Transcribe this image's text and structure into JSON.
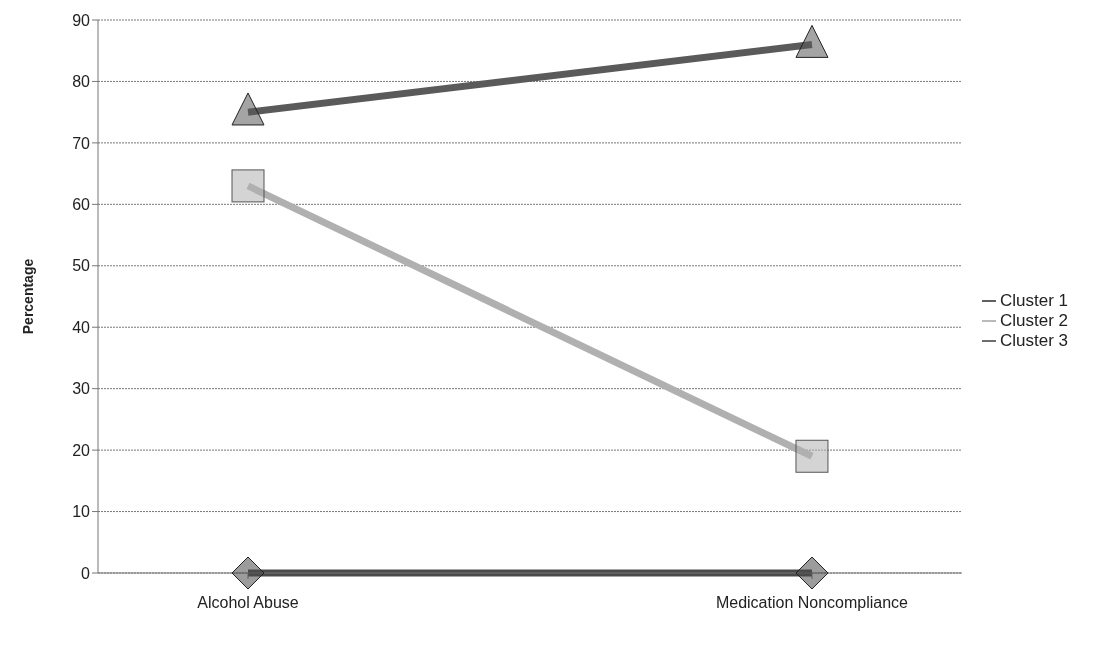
{
  "chart_data": {
    "type": "line",
    "ylabel": "Percentage",
    "categories": [
      "Alcohol Abuse",
      "Medication Noncompliance"
    ],
    "series": [
      {
        "name": "Cluster 1",
        "color": "#4a4a4a",
        "values": [
          0,
          0
        ],
        "marker": "diamond"
      },
      {
        "name": "Cluster 2",
        "color": "#b0b0b0",
        "values": [
          63,
          19
        ],
        "marker": "square"
      },
      {
        "name": "Cluster 3",
        "color": "#5a5a5a",
        "values": [
          75,
          86
        ],
        "marker": "triangle"
      }
    ],
    "ylim": [
      0,
      90
    ],
    "yticks": [
      0,
      10,
      20,
      30,
      40,
      50,
      60,
      70,
      80,
      90
    ],
    "grid": "y",
    "legend": "right"
  }
}
